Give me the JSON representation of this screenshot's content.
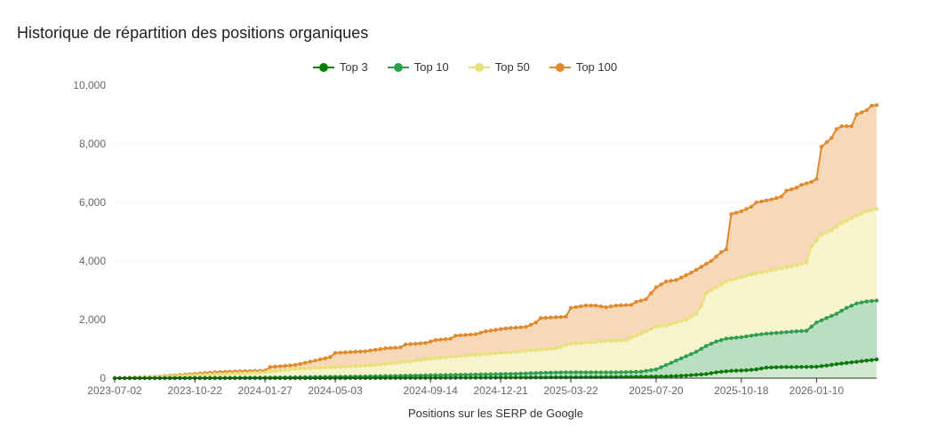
{
  "chart_data": {
    "type": "area",
    "title": "Historique de répartition des positions organiques",
    "xlabel": "Positions sur les SERP de Google",
    "ylabel": "",
    "ylim": [
      0,
      10000
    ],
    "yticks": [
      "0",
      "2,000",
      "4,000",
      "6,000",
      "8,000",
      "10,000"
    ],
    "ytick_values": [
      0,
      2000,
      4000,
      6000,
      8000,
      10000
    ],
    "xtick_labels": [
      "2023-07-02",
      "2023-10-22",
      "2024-01-27",
      "2024-05-03",
      "2024-09-14",
      "2024-12-21",
      "2025-03-22",
      "2025-07-20",
      "2025-10-18",
      "2026-01-10"
    ],
    "xtick_index": [
      0,
      16,
      30,
      44,
      63,
      77,
      91,
      108,
      125,
      140
    ],
    "point_count": 153,
    "grid": true,
    "legend_position": "top-center",
    "series": [
      {
        "name": "Top 3",
        "color": "#0b7a0b",
        "fill": "#cfe8cf",
        "keyframes": [
          [
            0,
            0
          ],
          [
            40,
            0
          ],
          [
            60,
            10
          ],
          [
            80,
            20
          ],
          [
            100,
            40
          ],
          [
            110,
            60
          ],
          [
            114,
            90
          ],
          [
            118,
            140
          ],
          [
            120,
            200
          ],
          [
            123,
            250
          ],
          [
            126,
            270
          ],
          [
            128,
            300
          ],
          [
            130,
            360
          ],
          [
            133,
            380
          ],
          [
            136,
            380
          ],
          [
            140,
            390
          ],
          [
            142,
            430
          ],
          [
            144,
            480
          ],
          [
            146,
            520
          ],
          [
            148,
            560
          ],
          [
            150,
            600
          ],
          [
            152,
            640
          ]
        ]
      },
      {
        "name": "Top 10",
        "color": "#2e9e4f",
        "fill": "#b8dfc0",
        "keyframes": [
          [
            0,
            0
          ],
          [
            20,
            10
          ],
          [
            30,
            20
          ],
          [
            40,
            40
          ],
          [
            50,
            60
          ],
          [
            60,
            90
          ],
          [
            70,
            120
          ],
          [
            80,
            150
          ],
          [
            85,
            180
          ],
          [
            90,
            200
          ],
          [
            100,
            200
          ],
          [
            105,
            220
          ],
          [
            108,
            300
          ],
          [
            110,
            450
          ],
          [
            112,
            600
          ],
          [
            114,
            750
          ],
          [
            116,
            900
          ],
          [
            118,
            1100
          ],
          [
            120,
            1250
          ],
          [
            122,
            1350
          ],
          [
            125,
            1400
          ],
          [
            128,
            1480
          ],
          [
            130,
            1520
          ],
          [
            133,
            1560
          ],
          [
            136,
            1600
          ],
          [
            138,
            1620
          ],
          [
            140,
            1900
          ],
          [
            142,
            2050
          ],
          [
            144,
            2200
          ],
          [
            146,
            2400
          ],
          [
            148,
            2550
          ],
          [
            150,
            2620
          ],
          [
            152,
            2650
          ]
        ]
      },
      {
        "name": "Top 50",
        "color": "#e8e07a",
        "fill": "#f7f3cc",
        "keyframes": [
          [
            0,
            0
          ],
          [
            10,
            50
          ],
          [
            18,
            120
          ],
          [
            30,
            200
          ],
          [
            33,
            260
          ],
          [
            36,
            320
          ],
          [
            44,
            380
          ],
          [
            52,
            450
          ],
          [
            58,
            560
          ],
          [
            65,
            700
          ],
          [
            72,
            800
          ],
          [
            80,
            900
          ],
          [
            83,
            950
          ],
          [
            88,
            1020
          ],
          [
            91,
            1180
          ],
          [
            95,
            1220
          ],
          [
            98,
            1270
          ],
          [
            102,
            1300
          ],
          [
            104,
            1450
          ],
          [
            106,
            1600
          ],
          [
            108,
            1750
          ],
          [
            110,
            1800
          ],
          [
            112,
            1900
          ],
          [
            114,
            2000
          ],
          [
            116,
            2200
          ],
          [
            117,
            2450
          ],
          [
            118,
            2900
          ],
          [
            120,
            3100
          ],
          [
            122,
            3300
          ],
          [
            126,
            3500
          ],
          [
            130,
            3650
          ],
          [
            134,
            3780
          ],
          [
            136,
            3850
          ],
          [
            138,
            3950
          ],
          [
            139,
            4500
          ],
          [
            141,
            4900
          ],
          [
            143,
            5050
          ],
          [
            145,
            5300
          ],
          [
            148,
            5550
          ],
          [
            150,
            5700
          ],
          [
            152,
            5780
          ]
        ]
      },
      {
        "name": "Top 100",
        "color": "#e08a2e",
        "fill": "#f7d9b9",
        "keyframes": [
          [
            0,
            0
          ],
          [
            8,
            50
          ],
          [
            14,
            120
          ],
          [
            20,
            200
          ],
          [
            26,
            240
          ],
          [
            30,
            260
          ],
          [
            31,
            380
          ],
          [
            36,
            450
          ],
          [
            40,
            600
          ],
          [
            43,
            720
          ],
          [
            44,
            860
          ],
          [
            50,
            920
          ],
          [
            54,
            1020
          ],
          [
            57,
            1050
          ],
          [
            58,
            1150
          ],
          [
            62,
            1200
          ],
          [
            64,
            1300
          ],
          [
            67,
            1350
          ],
          [
            68,
            1450
          ],
          [
            72,
            1500
          ],
          [
            74,
            1600
          ],
          [
            78,
            1700
          ],
          [
            82,
            1750
          ],
          [
            84,
            1900
          ],
          [
            85,
            2050
          ],
          [
            90,
            2100
          ],
          [
            91,
            2400
          ],
          [
            94,
            2480
          ],
          [
            96,
            2480
          ],
          [
            98,
            2420
          ],
          [
            100,
            2480
          ],
          [
            103,
            2500
          ],
          [
            104,
            2600
          ],
          [
            106,
            2700
          ],
          [
            108,
            3100
          ],
          [
            110,
            3300
          ],
          [
            112,
            3350
          ],
          [
            115,
            3600
          ],
          [
            117,
            3800
          ],
          [
            119,
            4000
          ],
          [
            121,
            4300
          ],
          [
            122,
            4400
          ],
          [
            123,
            5600
          ],
          [
            125,
            5700
          ],
          [
            127,
            5850
          ],
          [
            128,
            6000
          ],
          [
            131,
            6100
          ],
          [
            133,
            6200
          ],
          [
            134,
            6400
          ],
          [
            136,
            6500
          ],
          [
            137,
            6600
          ],
          [
            139,
            6700
          ],
          [
            140,
            6800
          ],
          [
            141,
            7900
          ],
          [
            143,
            8200
          ],
          [
            144,
            8500
          ],
          [
            145,
            8600
          ],
          [
            147,
            8600
          ],
          [
            148,
            9000
          ],
          [
            150,
            9150
          ],
          [
            151,
            9300
          ],
          [
            152,
            9320
          ]
        ]
      }
    ]
  },
  "colors": {
    "grid": "#eeeeee",
    "axis": "#333333",
    "marker_stroke": "#ffffff"
  }
}
